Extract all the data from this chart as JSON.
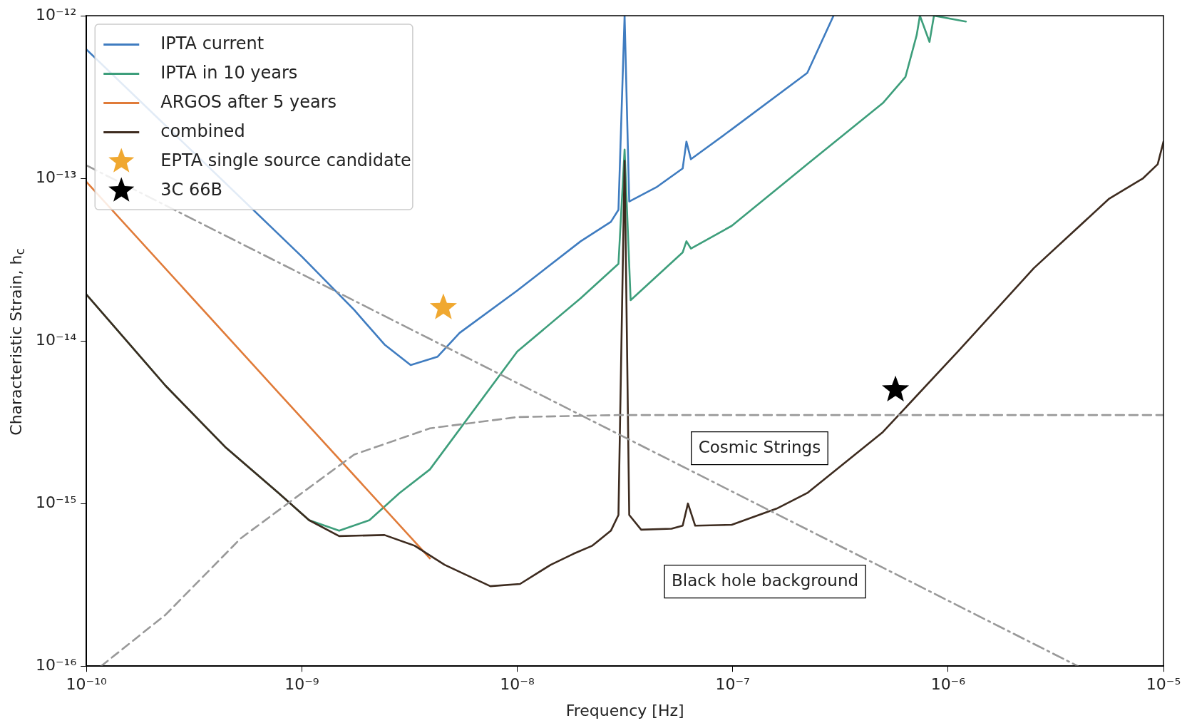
{
  "chart_data": {
    "type": "line",
    "xlabel": "Frequency [Hz]",
    "ylabel": "Characteristic Strain, h$_{c}$",
    "log": "xy",
    "grid": false,
    "legend": "top left",
    "xlim": [
      1e-10,
      1e-05
    ],
    "ylim": [
      1e-16,
      1e-12
    ],
    "xticks": [
      {
        "value": 1e-10,
        "label": "10⁻¹⁰"
      },
      {
        "value": 1e-09,
        "label": "10⁻⁹"
      },
      {
        "value": 1e-08,
        "label": "10⁻⁸"
      },
      {
        "value": 1e-07,
        "label": "10⁻⁷"
      },
      {
        "value": 1e-06,
        "label": "10⁻⁶"
      },
      {
        "value": 1e-05,
        "label": "10⁻⁵"
      }
    ],
    "yticks": [
      {
        "value": 1e-16,
        "label": "10⁻¹⁶"
      },
      {
        "value": 1e-15,
        "label": "10⁻¹⁵"
      },
      {
        "value": 1e-14,
        "label": "10⁻¹⁴"
      },
      {
        "value": 1e-13,
        "label": "10⁻¹³"
      },
      {
        "value": 1e-12,
        "label": "10⁻¹²"
      }
    ],
    "series": [
      {
        "name": "IPTA current",
        "color": "#3f7cc0",
        "x": [
          1e-10,
          1e-09,
          1.75e-09,
          2.42e-09,
          3.2e-09,
          4.27e-09,
          5.4e-09,
          1e-08,
          1.97e-08,
          2.72e-08,
          2.95e-08,
          3.15e-08,
          3.31e-08,
          4.42e-08,
          5.86e-08,
          6.1e-08,
          6.4e-08,
          9.9e-08,
          2.22e-07,
          2.94e-07
        ],
        "values": [
          6.2e-13,
          3.3e-14,
          1.55e-14,
          9.5e-15,
          7.1e-15,
          8e-15,
          1.12e-14,
          2.04e-14,
          4.1e-14,
          5.4e-14,
          6.4e-14,
          1e-12,
          7.2e-14,
          8.8e-14,
          1.15e-13,
          1.68e-13,
          1.31e-13,
          2e-13,
          4.45e-13,
          1e-12
        ]
      },
      {
        "name": "IPTA in 10 years",
        "color": "#3d9e7b",
        "x": [
          1e-10,
          2.33e-10,
          4.45e-10,
          7.8e-10,
          1.08e-09,
          1.49e-09,
          2.06e-09,
          2.84e-09,
          3.93e-09,
          1e-08,
          1.97e-08,
          2.95e-08,
          3.15e-08,
          3.36e-08,
          5.86e-08,
          6.1e-08,
          6.4e-08,
          9.9e-08,
          2.22e-07,
          4.98e-07,
          6.34e-07,
          7.15e-07,
          7.4e-07,
          8.2e-07,
          8.6e-07,
          1.21e-06
        ],
        "values": [
          1.93e-14,
          5.3e-15,
          2.2e-15,
          1.16e-15,
          7.9e-16,
          6.8e-16,
          7.9e-16,
          1.16e-15,
          1.62e-15,
          8.6e-15,
          1.83e-14,
          2.98e-14,
          1.5e-13,
          1.78e-14,
          3.5e-14,
          4.1e-14,
          3.7e-14,
          5.1e-14,
          1.22e-13,
          2.9e-13,
          4.2e-13,
          7.6e-13,
          1e-12,
          6.9e-13,
          1e-12,
          9.2e-13
        ]
      },
      {
        "name": "ARGOS after 5 years",
        "color": "#e07b39",
        "x": [
          1e-10,
          7.8e-10,
          3.93e-09
        ],
        "values": [
          9.5e-14,
          4.8e-15,
          4.6e-16
        ]
      },
      {
        "name": "combined",
        "color": "#3d2b1f",
        "x": [
          1e-10,
          2.33e-10,
          4.45e-10,
          7.8e-10,
          1.08e-09,
          1.49e-09,
          2.42e-09,
          3.34e-09,
          4.6e-09,
          7.5e-09,
          1.03e-08,
          1.43e-08,
          1.82e-08,
          2.23e-08,
          2.72e-08,
          2.95e-08,
          3.15e-08,
          3.31e-08,
          3.76e-08,
          5.2e-08,
          5.86e-08,
          6.2e-08,
          6.7e-08,
          9.9e-08,
          1.6e-07,
          2.22e-07,
          4.98e-07,
          1.11e-06,
          2.5e-06,
          5.6e-06,
          8.04e-06,
          9.4e-06,
          1e-05
        ],
        "values": [
          1.93e-14,
          5.3e-15,
          2.2e-15,
          1.16e-15,
          7.9e-16,
          6.3e-16,
          6.4e-16,
          5.5e-16,
          4.2e-16,
          3.1e-16,
          3.2e-16,
          4.2e-16,
          4.9e-16,
          5.5e-16,
          6.8e-16,
          8.5e-16,
          1.28e-13,
          8.5e-16,
          6.9e-16,
          7e-16,
          7.3e-16,
          1e-15,
          7.3e-16,
          7.4e-16,
          9.3e-16,
          1.16e-15,
          2.75e-15,
          8.6e-15,
          2.8e-14,
          7.5e-14,
          1e-13,
          1.22e-13,
          1.68e-13
        ]
      },
      {
        "name": "EPTA single source candidate",
        "type": "scatter",
        "marker": "star",
        "color": "#f0a830",
        "x": [
          4.54e-09
        ],
        "values": [
          1.6e-14
        ]
      },
      {
        "name": "3C 66B",
        "type": "scatter",
        "marker": "star",
        "color": "#000000",
        "x": [
          5.7e-07
        ],
        "values": [
          5e-15
        ]
      },
      {
        "line_style": "dashed",
        "color": "#999999",
        "x": [
          1.17e-10,
          2.33e-10,
          5.2e-10,
          1e-09,
          1.75e-09,
          3.93e-09,
          1e-08,
          2.95e-08,
          1e-05
        ],
        "values": [
          1e-16,
          2.07e-16,
          6.1e-16,
          1.16e-15,
          2e-15,
          2.9e-15,
          3.4e-15,
          3.5e-15,
          3.5e-15
        ]
      },
      {
        "line_style": "dashdot",
        "color": "#999999",
        "x": [
          1e-10,
          4e-06
        ],
        "values": [
          1.2e-13,
          1e-16
        ]
      }
    ],
    "annotations": [
      "Cosmic Strings",
      "Black hole background"
    ]
  }
}
